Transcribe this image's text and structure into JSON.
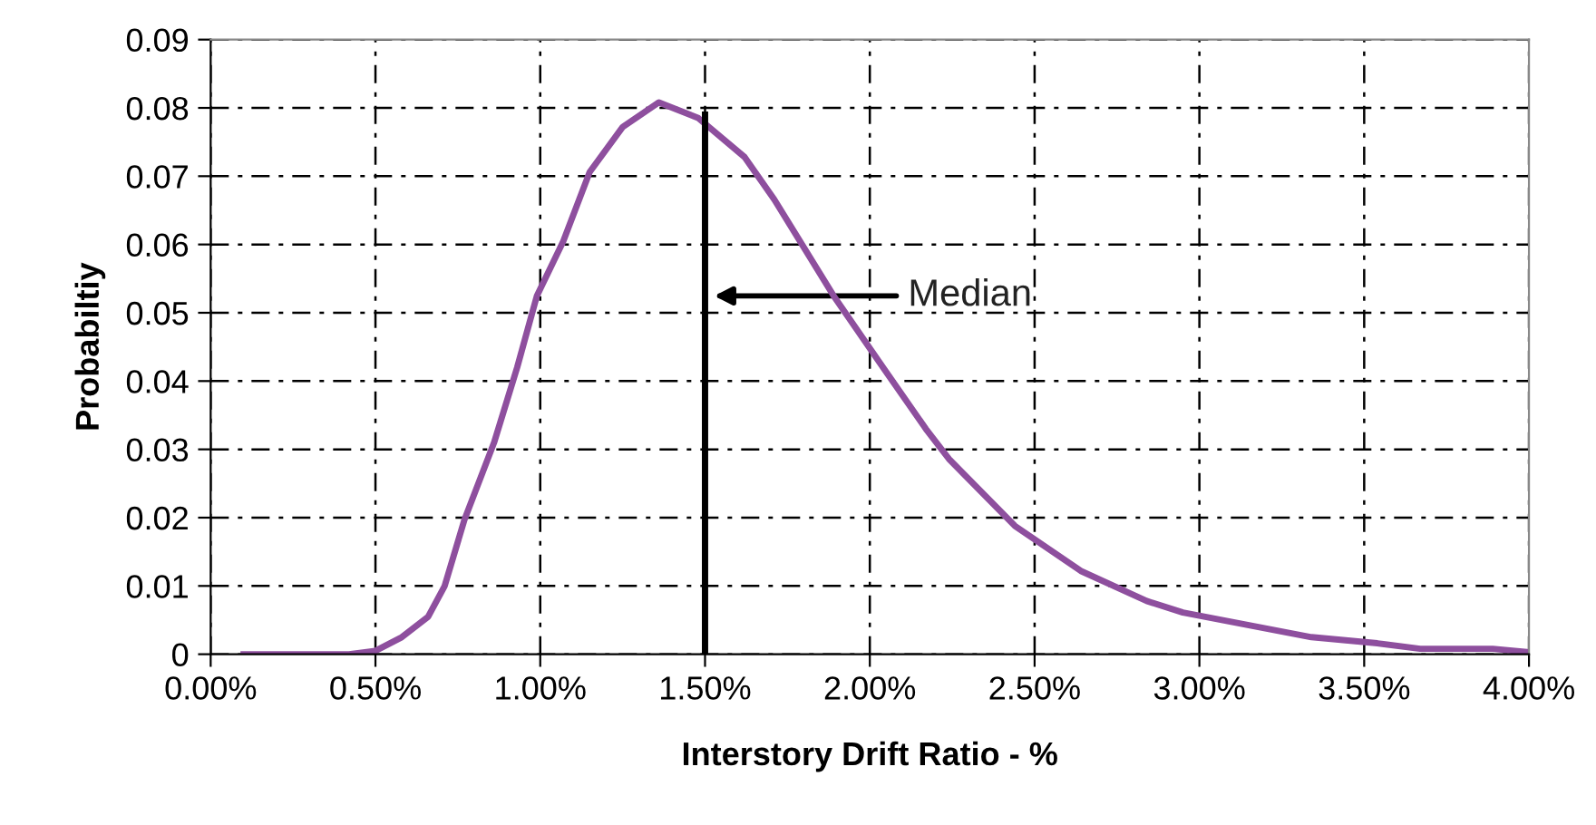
{
  "chart_data": {
    "type": "line",
    "xlabel": "Interstory Drift Ratio - %",
    "ylabel": "Probabiltiy",
    "series": [
      {
        "color": "#8e4f9e",
        "x": [
          0.1,
          0.42,
          0.5,
          0.58,
          0.66,
          0.71,
          0.77,
          0.86,
          0.93,
          0.99,
          1.07,
          1.15,
          1.25,
          1.36,
          1.48,
          1.62,
          1.71,
          1.89,
          2.04,
          2.17,
          2.24,
          2.44,
          2.64,
          2.84,
          2.95,
          3.34,
          3.54,
          3.67,
          3.89,
          4.0
        ],
        "values": [
          0,
          0,
          0.0005,
          0.0025,
          0.0055,
          0.01,
          0.0197,
          0.031,
          0.042,
          0.0525,
          0.0605,
          0.0706,
          0.0772,
          0.0808,
          0.0785,
          0.0728,
          0.0666,
          0.0525,
          0.042,
          0.033,
          0.0286,
          0.0188,
          0.0122,
          0.0078,
          0.0061,
          0.0025,
          0.0016,
          0.0008,
          0.0008,
          0.0003
        ]
      },
      {
        "color": "#000000",
        "x": [
          1.5,
          1.5
        ],
        "values": [
          0,
          0.079
        ]
      }
    ],
    "annotations": [
      "Median"
    ],
    "xlim": [
      0,
      4
    ],
    "ylim": [
      0,
      0.09
    ],
    "xticks": [
      {
        "value": 0,
        "label": "0.00%"
      },
      {
        "value": 0.5,
        "label": "0.50%"
      },
      {
        "value": 1,
        "label": "1.00%"
      },
      {
        "value": 1.5,
        "label": "1.50%"
      },
      {
        "value": 2,
        "label": "2.00%"
      },
      {
        "value": 2.5,
        "label": "2.50%"
      },
      {
        "value": 3,
        "label": "3.00%"
      },
      {
        "value": 3.5,
        "label": "3.50%"
      },
      {
        "value": 4,
        "label": "4.00%"
      }
    ],
    "yticks": [
      0,
      0.01,
      0.02,
      0.03,
      0.04,
      0.05,
      0.06,
      0.07,
      0.08,
      0.09
    ],
    "grid": true,
    "marker": "none",
    "line_style": "solid"
  }
}
